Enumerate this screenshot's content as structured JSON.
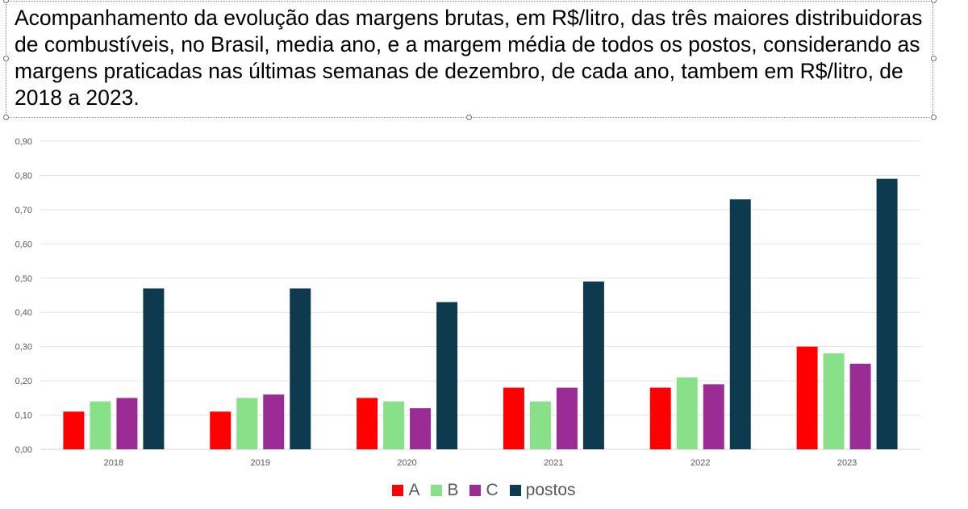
{
  "title": "Acompanhamento da evolução das margens brutas, em R$/litro, das três maiores distribuidoras de combustíveis, no Brasil, media ano, e a margem média de todos os postos, considerando as margens praticadas nas últimas semanas de dezembro, de cada ano, tambem em R$/litro, de 2018 a 2023.",
  "chart_data": {
    "type": "bar",
    "categories": [
      "2018",
      "2019",
      "2020",
      "2021",
      "2022",
      "2023"
    ],
    "series": [
      {
        "name": "A",
        "color": "#ff0000",
        "values": [
          0.11,
          0.11,
          0.15,
          0.18,
          0.18,
          0.3
        ]
      },
      {
        "name": "B",
        "color": "#88e088",
        "values": [
          0.14,
          0.15,
          0.14,
          0.14,
          0.21,
          0.28
        ]
      },
      {
        "name": "C",
        "color": "#9b2c96",
        "values": [
          0.15,
          0.16,
          0.12,
          0.18,
          0.19,
          0.25
        ]
      },
      {
        "name": "postos",
        "color": "#0e3a50",
        "values": [
          0.47,
          0.47,
          0.43,
          0.49,
          0.73,
          0.79
        ]
      }
    ],
    "yticks": [
      "0,00",
      "0,10",
      "0,20",
      "0,30",
      "0,40",
      "0,50",
      "0,60",
      "0,70",
      "0,80",
      "0,90"
    ],
    "ylim": [
      0,
      0.9
    ],
    "grid": true,
    "legend_position": "bottom-center",
    "xlabel": "",
    "ylabel": ""
  }
}
